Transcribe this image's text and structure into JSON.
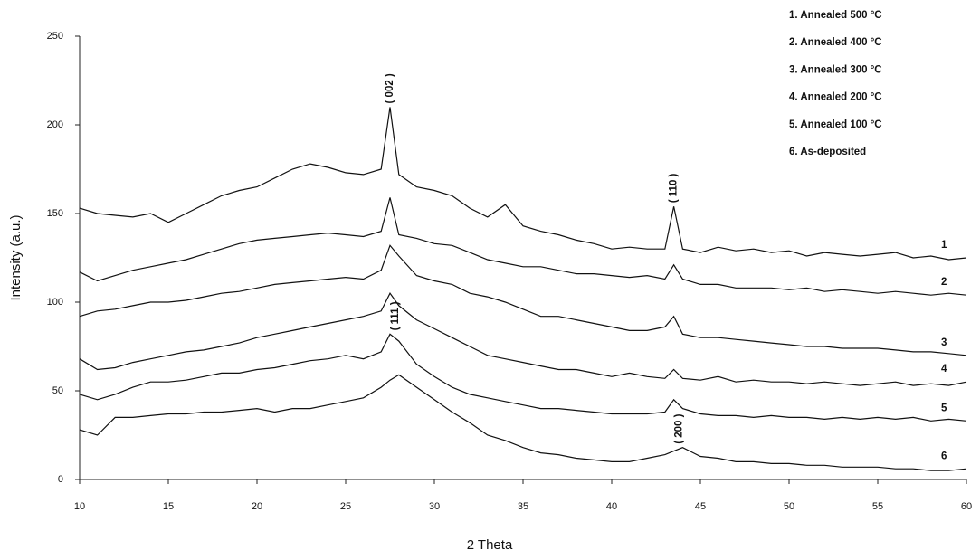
{
  "chart_data": {
    "type": "line",
    "x_label": "2 Theta",
    "y_label": "Intensity (a.u.)",
    "x": [
      10,
      11,
      12,
      13,
      14,
      15,
      16,
      17,
      18,
      19,
      20,
      21,
      22,
      23,
      24,
      25,
      26,
      27,
      27.5,
      28,
      29,
      30,
      31,
      32,
      33,
      34,
      35,
      36,
      37,
      38,
      39,
      40,
      41,
      42,
      43,
      43.5,
      44,
      45,
      46,
      47,
      48,
      49,
      50,
      51,
      52,
      53,
      54,
      55,
      56,
      57,
      58,
      59,
      60
    ],
    "series": [
      {
        "name": "1. Annealed 500 °C",
        "color": "#111111",
        "end_label": "1",
        "values": [
          153,
          150,
          149,
          148,
          150,
          145,
          150,
          155,
          160,
          163,
          165,
          170,
          175,
          178,
          176,
          173,
          172,
          175,
          210,
          172,
          165,
          163,
          160,
          153,
          148,
          155,
          143,
          140,
          138,
          135,
          133,
          130,
          131,
          130,
          130,
          154,
          130,
          128,
          131,
          129,
          130,
          128,
          129,
          126,
          128,
          127,
          126,
          127,
          128,
          125,
          126,
          124,
          125
        ]
      },
      {
        "name": "2. Annealed 400 °C",
        "color": "#111111",
        "end_label": "2",
        "values": [
          117,
          112,
          115,
          118,
          120,
          122,
          124,
          127,
          130,
          133,
          135,
          136,
          137,
          138,
          139,
          138,
          137,
          140,
          159,
          138,
          136,
          133,
          132,
          128,
          124,
          122,
          120,
          120,
          118,
          116,
          116,
          115,
          114,
          115,
          113,
          121,
          113,
          110,
          110,
          108,
          108,
          108,
          107,
          108,
          106,
          107,
          106,
          105,
          106,
          105,
          104,
          105,
          104
        ]
      },
      {
        "name": "3. Annealed 300 °C",
        "color": "#111111",
        "end_label": "3",
        "values": [
          92,
          95,
          96,
          98,
          100,
          100,
          101,
          103,
          105,
          106,
          108,
          110,
          111,
          112,
          113,
          114,
          113,
          118,
          132,
          126,
          115,
          112,
          110,
          105,
          103,
          100,
          96,
          92,
          92,
          90,
          88,
          86,
          84,
          84,
          86,
          92,
          82,
          80,
          80,
          79,
          78,
          77,
          76,
          75,
          75,
          74,
          74,
          74,
          73,
          72,
          72,
          71,
          70
        ]
      },
      {
        "name": "4. Annealed 200 °C",
        "color": "#111111",
        "end_label": "4",
        "values": [
          68,
          62,
          63,
          66,
          68,
          70,
          72,
          73,
          75,
          77,
          80,
          82,
          84,
          86,
          88,
          90,
          92,
          95,
          105,
          98,
          90,
          85,
          80,
          75,
          70,
          68,
          66,
          64,
          62,
          62,
          60,
          58,
          60,
          58,
          57,
          62,
          57,
          56,
          58,
          55,
          56,
          55,
          55,
          54,
          55,
          54,
          53,
          54,
          55,
          53,
          54,
          53,
          55
        ]
      },
      {
        "name": "5. Annealed 100 °C",
        "color": "#111111",
        "end_label": "5",
        "values": [
          48,
          45,
          48,
          52,
          55,
          55,
          56,
          58,
          60,
          60,
          62,
          63,
          65,
          67,
          68,
          70,
          68,
          72,
          82,
          78,
          65,
          58,
          52,
          48,
          46,
          44,
          42,
          40,
          40,
          39,
          38,
          37,
          37,
          37,
          38,
          45,
          40,
          37,
          36,
          36,
          35,
          36,
          35,
          35,
          34,
          35,
          34,
          35,
          34,
          35,
          33,
          34,
          33
        ]
      },
      {
        "name": "6. As-deposited",
        "color": "#111111",
        "end_label": "6",
        "values": [
          28,
          25,
          35,
          35,
          36,
          37,
          37,
          38,
          38,
          39,
          40,
          38,
          40,
          40,
          42,
          44,
          46,
          52,
          56,
          59,
          52,
          45,
          38,
          32,
          25,
          22,
          18,
          15,
          14,
          12,
          11,
          10,
          10,
          12,
          14,
          16,
          18,
          13,
          12,
          10,
          10,
          9,
          9,
          8,
          8,
          7,
          7,
          7,
          6,
          6,
          5,
          5,
          6
        ]
      }
    ],
    "annotations": [
      {
        "text": "( 002 )",
        "x": 27.5,
        "y": 212
      },
      {
        "text": "( 110 )",
        "x": 43.5,
        "y": 156
      },
      {
        "text": "( 111 )",
        "x": 27.8,
        "y": 84
      },
      {
        "text": "( 200 )",
        "x": 43.8,
        "y": 20
      }
    ],
    "xlim": [
      10,
      60
    ],
    "ylim": [
      0,
      250
    ],
    "xticks": [
      10,
      15,
      20,
      25,
      30,
      35,
      40,
      45,
      50,
      55,
      60
    ],
    "yticks": [
      0,
      50,
      100,
      150,
      200,
      250
    ],
    "grid": false,
    "legend": "top-right"
  }
}
